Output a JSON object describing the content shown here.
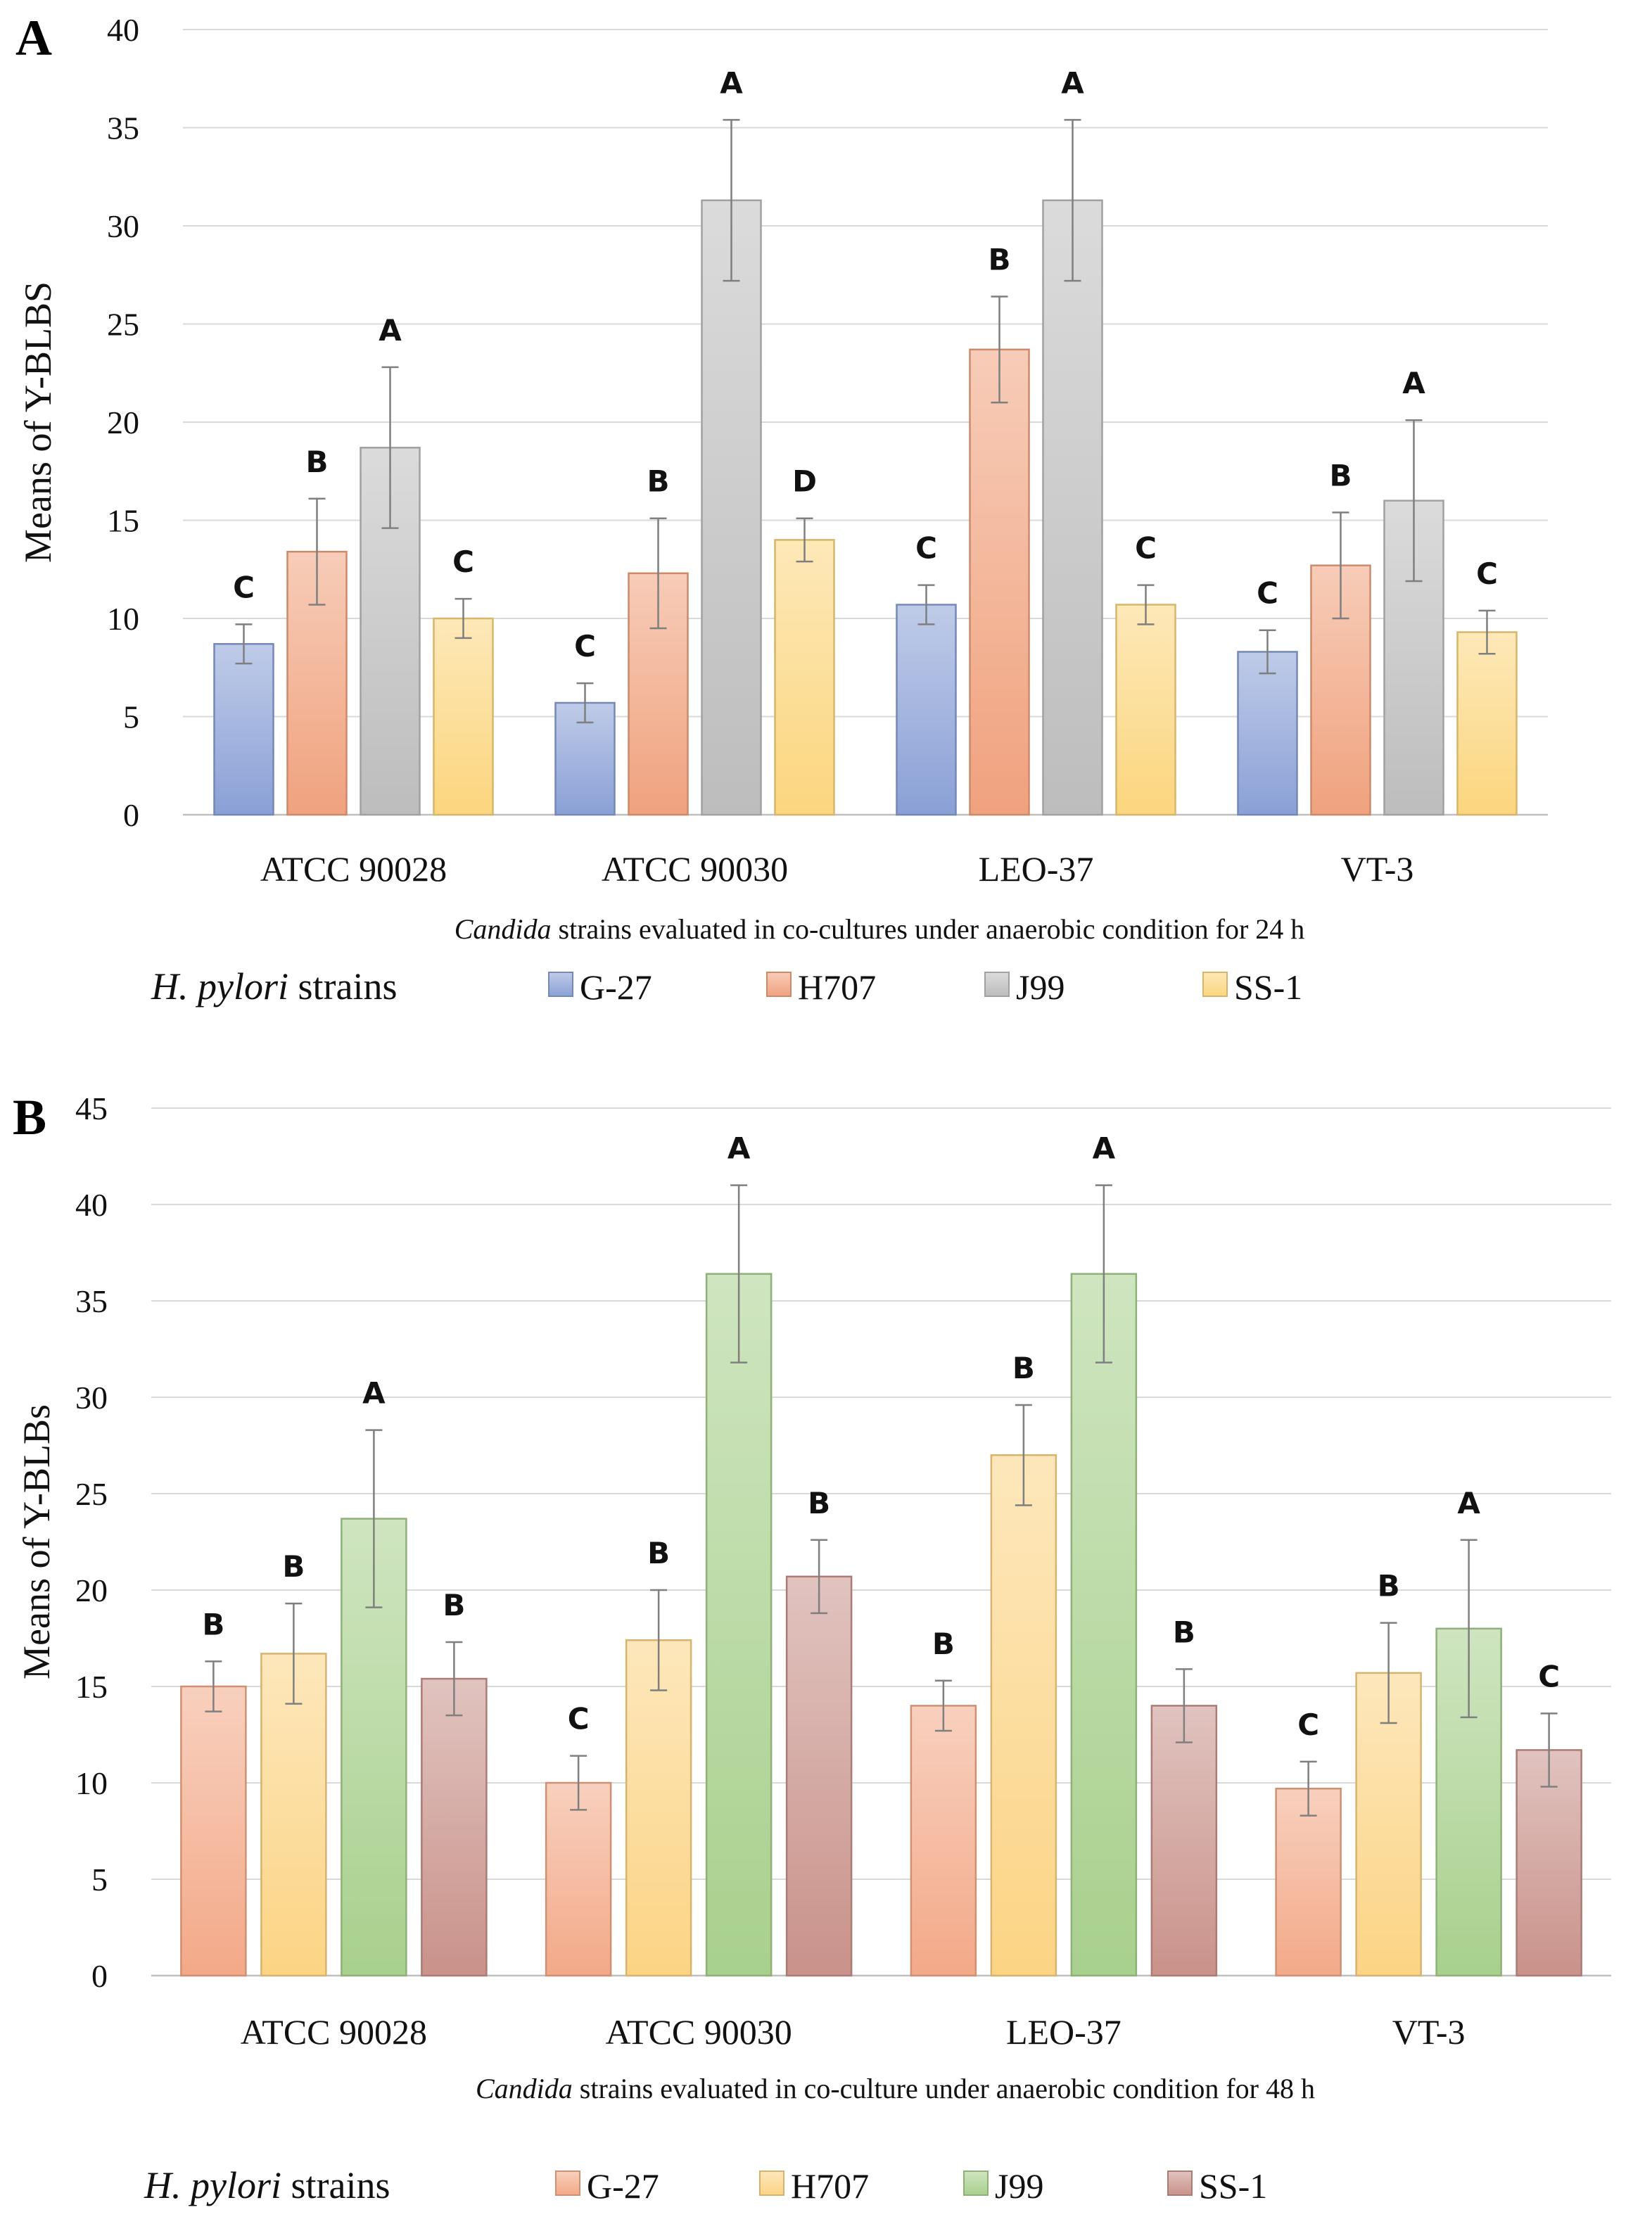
{
  "chart_data": [
    {
      "panel_label": "A",
      "type": "bar",
      "ylabel": "Means of Y-BLBS",
      "xlabel_italic": "Candida",
      "xlabel_rest": " strains evaluated in co-cultures under anaerobic condition  for 24 h",
      "ylim": [
        0,
        40
      ],
      "yticks": [
        0,
        5,
        10,
        15,
        20,
        25,
        30,
        35,
        40
      ],
      "grid": true,
      "categories": [
        "ATCC 90028",
        "ATCC 90030",
        "LEO-37",
        "VT-3"
      ],
      "legend_title_italic": "H. pylori",
      "legend_title_rest": " strains",
      "series": [
        {
          "name": "G-27",
          "color": "#8aa0d6",
          "values": [
            8.7,
            5.7,
            10.7,
            8.3
          ],
          "errors": [
            1.0,
            1.0,
            1.0,
            1.1
          ],
          "letters": [
            "C",
            "C",
            "C",
            "C"
          ]
        },
        {
          "name": "H707",
          "color": "#f0a27e",
          "values": [
            13.4,
            12.3,
            23.7,
            12.7
          ],
          "errors": [
            2.7,
            2.8,
            2.7,
            2.7
          ],
          "letters": [
            "B",
            "B",
            "B",
            "B"
          ]
        },
        {
          "name": "J99",
          "color": "#bdbdbd",
          "values": [
            18.7,
            31.3,
            31.3,
            16.0
          ],
          "errors": [
            4.1,
            4.1,
            4.1,
            4.1
          ],
          "letters": [
            "A",
            "A",
            "A",
            "A"
          ]
        },
        {
          "name": "SS-1",
          "color": "#fcd67e",
          "values": [
            10.0,
            14.0,
            10.7,
            9.3
          ],
          "errors": [
            1.0,
            1.1,
            1.0,
            1.1
          ],
          "letters": [
            "C",
            "D",
            "C",
            "C"
          ]
        }
      ]
    },
    {
      "panel_label": "B",
      "type": "bar",
      "ylabel": "Means of Y-BLBs",
      "xlabel_italic": "Candida",
      "xlabel_rest": " strains evaluated in co-culture under anaerobic condition for 48 h",
      "ylim": [
        0,
        45
      ],
      "yticks": [
        0,
        5,
        10,
        15,
        20,
        25,
        30,
        35,
        40,
        45
      ],
      "grid": true,
      "categories": [
        "ATCC 90028",
        "ATCC 90030",
        "LEO-37",
        "VT-3"
      ],
      "legend_title_italic": "H. pylori",
      "legend_title_rest": " strains",
      "series": [
        {
          "name": "G-27",
          "color": "#f3a988",
          "values": [
            15.0,
            10.0,
            14.0,
            9.7
          ],
          "errors": [
            1.3,
            1.4,
            1.3,
            1.4
          ],
          "letters": [
            "B",
            "C",
            "B",
            "C"
          ]
        },
        {
          "name": "H707",
          "color": "#fcd484",
          "values": [
            16.7,
            17.4,
            27.0,
            15.7
          ],
          "errors": [
            2.6,
            2.6,
            2.6,
            2.6
          ],
          "letters": [
            "B",
            "B",
            "B",
            "B"
          ]
        },
        {
          "name": "J99",
          "color": "#a8d08d",
          "values": [
            23.7,
            36.4,
            36.4,
            18.0
          ],
          "errors": [
            4.6,
            4.6,
            4.6,
            4.6
          ],
          "letters": [
            "A",
            "A",
            "A",
            "A"
          ]
        },
        {
          "name": "SS-1",
          "color": "#c9928a",
          "values": [
            15.4,
            20.7,
            14.0,
            11.7
          ],
          "errors": [
            1.9,
            1.9,
            1.9,
            1.9
          ],
          "letters": [
            "B",
            "B",
            "B",
            "C"
          ]
        }
      ]
    }
  ]
}
